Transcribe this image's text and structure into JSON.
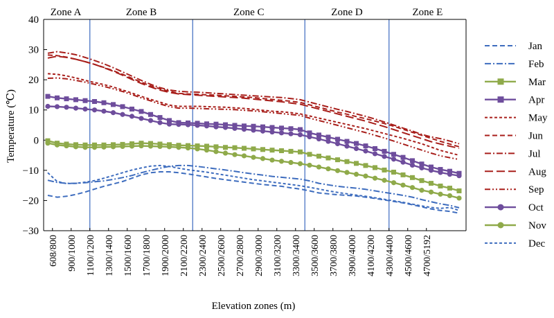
{
  "chart_data": {
    "type": "line",
    "xlabel": "Elevation zones (m)",
    "ylabel": "Temperature (℃)",
    "ylim": [
      -30,
      40
    ],
    "yticks": [
      -30,
      -20,
      -10,
      0,
      10,
      20,
      30,
      40
    ],
    "grid": false,
    "legend_position": "right",
    "x_tick_labels": [
      "608/800",
      "900/1000",
      "1100/1200",
      "1300/1400",
      "1500/1600",
      "1700/1800",
      "1900/2000",
      "2100/2200",
      "2300/2400",
      "2500/2600",
      "2700/2800",
      "2900/3000",
      "3100/3200",
      "3300/3400",
      "3500/3600",
      "3700/3800",
      "3900/4000",
      "4100/4200",
      "4300/4400",
      "4500/4600",
      "4700/5192"
    ],
    "zones": [
      {
        "label": "Zone A",
        "start": 0,
        "end": 4.5
      },
      {
        "label": "Zone B",
        "start": 4.5,
        "end": 15.5
      },
      {
        "label": "Zone C",
        "start": 15.5,
        "end": 27.5
      },
      {
        "label": "Zone D",
        "start": 27.5,
        "end": 36.5
      },
      {
        "label": "Zone E",
        "start": 36.5,
        "end": 45
      }
    ],
    "series": [
      {
        "name": "Jan",
        "color": "#3d6cbe",
        "dash": "dash",
        "marker": "none",
        "values": [
          -18.3,
          -18.9,
          -18.6,
          -18.0,
          -17.2,
          -16.2,
          -15.3,
          -14.5,
          -13.7,
          -12.6,
          -11.5,
          -10.8,
          -10.5,
          -10.5,
          -10.8,
          -11.2,
          -11.7,
          -12.2,
          -12.7,
          -13.1,
          -13.5,
          -13.9,
          -14.3,
          -14.7,
          -15.0,
          -15.3,
          -15.8,
          -16.2,
          -16.8,
          -17.5,
          -17.8,
          -18.1,
          -18.3,
          -18.5,
          -18.9,
          -19.3,
          -19.8,
          -20.3,
          -20.8,
          -21.4,
          -22.1,
          -22.8,
          -23.3,
          -23.6,
          -24.2
        ]
      },
      {
        "name": "Feb",
        "color": "#3d6cbe",
        "dash": "dashdot",
        "marker": "none",
        "values": [
          -13.3,
          -14.0,
          -14.3,
          -14.3,
          -14.1,
          -13.8,
          -13.5,
          -13.0,
          -12.4,
          -11.7,
          -10.8,
          -10.0,
          -9.3,
          -8.7,
          -8.4,
          -8.4,
          -8.7,
          -9.1,
          -9.5,
          -9.9,
          -10.3,
          -10.8,
          -11.2,
          -11.6,
          -12.0,
          -12.3,
          -12.6,
          -12.9,
          -13.5,
          -14.3,
          -14.8,
          -15.3,
          -15.6,
          -15.9,
          -16.3,
          -16.8,
          -17.3,
          -17.8,
          -18.3,
          -18.9,
          -19.7,
          -20.4,
          -21.1,
          -21.6,
          -22.4
        ]
      },
      {
        "name": "Mar",
        "color": "#8faa4a",
        "dash": "solid",
        "marker": "square",
        "values": [
          -0.2,
          -1.0,
          -1.3,
          -1.5,
          -1.6,
          -1.6,
          -1.6,
          -1.5,
          -1.4,
          -1.2,
          -1.0,
          -1.1,
          -1.3,
          -1.5,
          -1.7,
          -1.8,
          -1.9,
          -2.0,
          -2.2,
          -2.4,
          -2.5,
          -2.7,
          -2.9,
          -3.1,
          -3.3,
          -3.5,
          -3.7,
          -3.9,
          -4.7,
          -5.3,
          -5.9,
          -6.5,
          -7.1,
          -7.7,
          -8.4,
          -9.1,
          -9.9,
          -10.6,
          -11.5,
          -12.4,
          -13.4,
          -14.3,
          -15.2,
          -15.9,
          -16.8
        ]
      },
      {
        "name": "Apr",
        "color": "#6e4d9c",
        "dash": "solid",
        "marker": "square",
        "values": [
          14.5,
          14.0,
          13.7,
          13.4,
          13.1,
          12.8,
          12.4,
          11.8,
          11.1,
          10.3,
          9.5,
          8.5,
          7.5,
          6.5,
          5.8,
          5.7,
          5.6,
          5.4,
          5.3,
          5.1,
          4.9,
          4.7,
          4.6,
          4.4,
          4.2,
          4.0,
          3.8,
          3.5,
          2.4,
          1.7,
          1.0,
          0.3,
          -0.4,
          -1.1,
          -1.9,
          -2.8,
          -3.7,
          -4.7,
          -5.7,
          -6.8,
          -7.9,
          -8.9,
          -9.7,
          -10.3,
          -11.0
        ]
      },
      {
        "name": "May",
        "color": "#a81e1a",
        "dash": "shortdash",
        "marker": "none",
        "values": [
          22.0,
          21.8,
          21.3,
          20.6,
          19.8,
          19.1,
          18.4,
          17.6,
          16.6,
          15.6,
          14.5,
          13.5,
          12.6,
          11.6,
          11.2,
          11.2,
          11.2,
          11.1,
          11.0,
          10.9,
          10.7,
          10.5,
          10.2,
          9.9,
          9.6,
          9.4,
          9.1,
          8.7,
          8.0,
          7.3,
          6.6,
          5.9,
          5.2,
          4.5,
          3.8,
          3.0,
          2.2,
          1.4,
          0.6,
          -0.3,
          -1.2,
          -2.3,
          -3.4,
          -4.2,
          -5.0
        ]
      },
      {
        "name": "Jun",
        "color": "#a81e1a",
        "dash": "dash",
        "marker": "none",
        "values": [
          28.2,
          28.0,
          27.5,
          26.8,
          26.0,
          25.1,
          24.1,
          23.0,
          21.8,
          20.5,
          19.2,
          18.0,
          17.0,
          16.2,
          15.5,
          15.3,
          15.2,
          15.0,
          14.9,
          14.7,
          14.5,
          14.3,
          14.1,
          13.8,
          13.5,
          13.2,
          12.9,
          12.5,
          11.7,
          10.9,
          10.1,
          9.3,
          8.6,
          7.8,
          7.1,
          6.3,
          5.5,
          4.6,
          3.6,
          2.6,
          1.6,
          0.6,
          -0.4,
          -1.3,
          -2.2
        ]
      },
      {
        "name": "Jul",
        "color": "#a81e1a",
        "dash": "dashdot",
        "marker": "none",
        "values": [
          28.8,
          29.3,
          28.9,
          28.3,
          27.4,
          26.4,
          25.3,
          24.0,
          22.6,
          21.2,
          19.8,
          18.5,
          17.4,
          16.6,
          16.2,
          16.0,
          15.9,
          15.7,
          15.5,
          15.3,
          15.1,
          14.9,
          14.7,
          14.5,
          14.3,
          14.1,
          13.8,
          13.4,
          12.6,
          11.8,
          11.0,
          10.2,
          9.5,
          8.7,
          7.9,
          7.0,
          6.0,
          5.0,
          4.0,
          3.0,
          1.9,
          1.1,
          0.5,
          -0.3,
          -1.2
        ]
      },
      {
        "name": "Aug",
        "color": "#a81e1a",
        "dash": "longdash",
        "marker": "none",
        "values": [
          27.2,
          27.8,
          27.4,
          26.8,
          26.0,
          25.1,
          24.0,
          22.8,
          21.5,
          20.1,
          18.8,
          17.6,
          16.6,
          15.8,
          15.3,
          15.1,
          14.9,
          14.7,
          14.5,
          14.3,
          14.1,
          13.9,
          13.6,
          13.3,
          13.0,
          12.7,
          12.3,
          11.9,
          11.1,
          10.3,
          9.5,
          8.7,
          7.9,
          7.1,
          6.3,
          5.4,
          4.5,
          3.5,
          2.5,
          1.5,
          0.5,
          -0.5,
          -1.3,
          -2.0,
          -2.7
        ]
      },
      {
        "name": "Sep",
        "color": "#a81e1a",
        "dash": "dashdotdot",
        "marker": "none",
        "values": [
          20.5,
          20.6,
          20.3,
          19.8,
          19.2,
          18.5,
          17.8,
          17.0,
          16.1,
          15.1,
          14.0,
          13.0,
          12.0,
          11.1,
          10.6,
          10.6,
          10.5,
          10.4,
          10.3,
          10.2,
          10.1,
          9.9,
          9.7,
          9.4,
          9.1,
          8.8,
          8.5,
          8.2,
          7.3,
          6.5,
          5.7,
          4.9,
          4.1,
          3.3,
          2.5,
          1.6,
          0.7,
          -0.3,
          -1.3,
          -2.3,
          -3.3,
          -4.3,
          -5.2,
          -5.8,
          -6.4
        ]
      },
      {
        "name": "Oct",
        "color": "#6e4d9c",
        "dash": "solid",
        "marker": "circle",
        "values": [
          11.2,
          11.1,
          10.9,
          10.6,
          10.3,
          10.0,
          9.6,
          9.1,
          8.5,
          7.9,
          7.2,
          6.5,
          5.8,
          5.3,
          5.2,
          5.1,
          4.9,
          4.7,
          4.4,
          4.2,
          3.9,
          3.6,
          3.3,
          3.0,
          2.7,
          2.4,
          2.1,
          1.8,
          1.1,
          0.4,
          -0.4,
          -1.2,
          -2.0,
          -2.8,
          -3.6,
          -4.5,
          -5.4,
          -6.3,
          -7.3,
          -8.3,
          -9.2,
          -10.0,
          -10.7,
          -11.3,
          -11.8
        ]
      },
      {
        "name": "Nov",
        "color": "#8faa4a",
        "dash": "solid",
        "marker": "circle",
        "values": [
          -1.0,
          -1.6,
          -1.9,
          -2.2,
          -2.4,
          -2.4,
          -2.3,
          -2.2,
          -2.1,
          -2.0,
          -1.9,
          -2.0,
          -2.1,
          -2.2,
          -2.4,
          -2.6,
          -2.9,
          -3.3,
          -3.8,
          -4.3,
          -4.8,
          -5.2,
          -5.7,
          -6.1,
          -6.6,
          -7.0,
          -7.4,
          -7.8,
          -8.3,
          -8.9,
          -9.5,
          -10.1,
          -10.7,
          -11.3,
          -11.9,
          -12.6,
          -13.3,
          -14.1,
          -14.9,
          -15.7,
          -16.6,
          -17.2,
          -17.9,
          -18.4,
          -19.2
        ]
      },
      {
        "name": "Dec",
        "color": "#3d6cbe",
        "dash": "shortdash",
        "marker": "none",
        "values": [
          -10.8,
          -13.7,
          -14.4,
          -14.3,
          -13.9,
          -13.4,
          -12.6,
          -11.7,
          -10.8,
          -9.9,
          -9.2,
          -8.6,
          -8.4,
          -8.7,
          -9.3,
          -9.8,
          -10.2,
          -10.6,
          -11.1,
          -11.6,
          -12.1,
          -12.6,
          -13.1,
          -13.5,
          -13.9,
          -14.3,
          -14.7,
          -15.1,
          -15.6,
          -16.2,
          -16.8,
          -17.3,
          -17.8,
          -18.2,
          -18.6,
          -19.1,
          -19.6,
          -20.1,
          -20.6,
          -21.2,
          -21.8,
          -22.3,
          -22.6,
          -22.3,
          -23.3
        ]
      }
    ]
  }
}
